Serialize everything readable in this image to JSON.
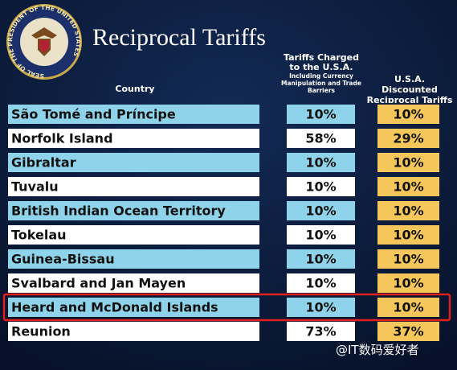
{
  "seal": {
    "text": "SEAL OF THE PRESIDENT OF THE UNITED STATES"
  },
  "header": {
    "title": "Reciprocal Tariffs"
  },
  "table": {
    "columns": [
      "Country",
      "Tariffs Charged to the U.S.A.",
      "U.S.A. Discounted Reciprocal Tariffs"
    ],
    "column_note": "Including Currency Manipulation and Trade Barriers",
    "rows": [
      [
        "São Tomé and Príncipe",
        "10%",
        "10%"
      ],
      [
        "Norfolk Island",
        "58%",
        "29%"
      ],
      [
        "Gibraltar",
        "10%",
        "10%"
      ],
      [
        "Tuvalu",
        "10%",
        "10%"
      ],
      [
        "British Indian Ocean Territory",
        "10%",
        "10%"
      ],
      [
        "Tokelau",
        "10%",
        "10%"
      ],
      [
        "Guinea-Bissau",
        "10%",
        "10%"
      ],
      [
        "Svalbard and Jan Mayen",
        "10%",
        "10%"
      ],
      [
        "Heard and McDonald Islands",
        "10%",
        "10%"
      ],
      [
        "Reunion",
        "73%",
        "37%"
      ]
    ]
  },
  "watermark": "@IT数码爱好者"
}
